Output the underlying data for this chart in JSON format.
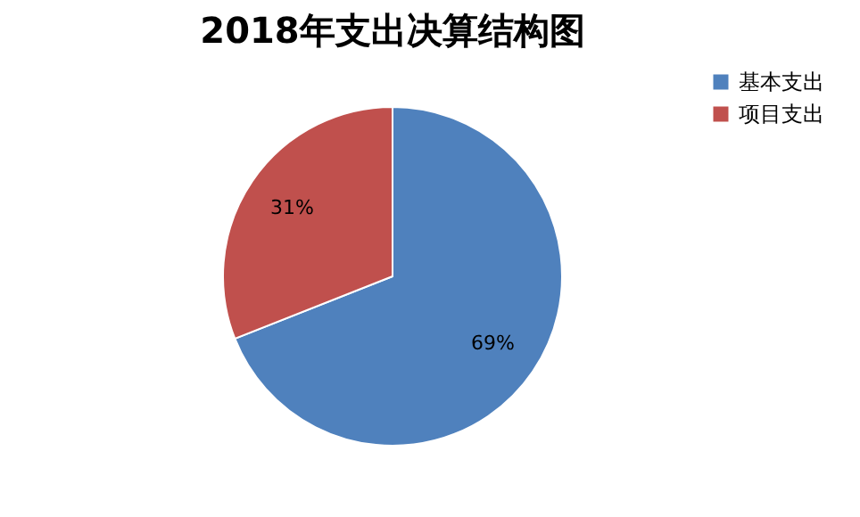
{
  "chart_data": {
    "type": "pie",
    "title": "2018年支出决算结构图",
    "categories": [
      "基本支出",
      "项目支出"
    ],
    "values": [
      69,
      31
    ],
    "colors": [
      "#4f81bd",
      "#c0504d"
    ],
    "value_labels": [
      "69%",
      "31%"
    ],
    "legend": "right"
  }
}
